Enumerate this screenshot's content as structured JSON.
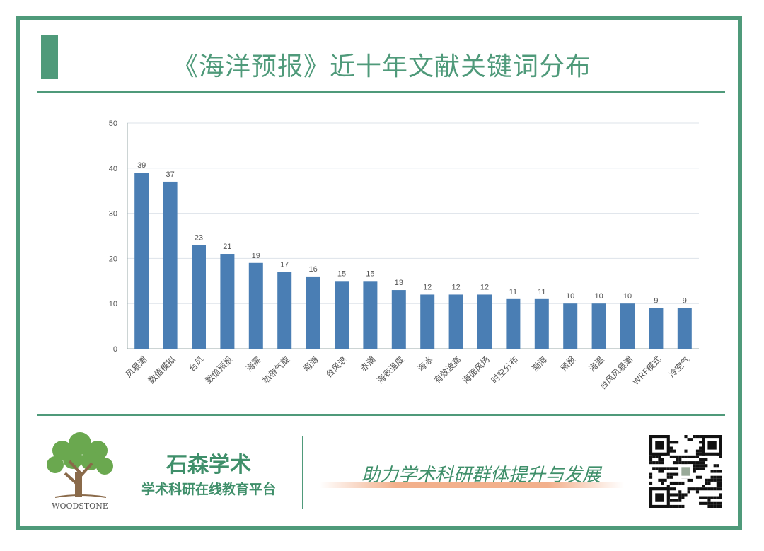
{
  "header": {
    "title": "《海洋预报》近十年文献关键词分布"
  },
  "chart_data": {
    "type": "bar",
    "title": "",
    "xlabel": "",
    "ylabel": "",
    "ylim": [
      0,
      50
    ],
    "yticks": [
      "0",
      "10",
      "20",
      "30",
      "40",
      "50"
    ],
    "grid": true,
    "bar_color": "#4a7eb4",
    "categories": [
      "风暴潮",
      "数值模拟",
      "台风",
      "数值预报",
      "海雾",
      "热带气旋",
      "南海",
      "台风浪",
      "赤潮",
      "海表温度",
      "海冰",
      "有效波高",
      "海面风场",
      "时空分布",
      "渤海",
      "预报",
      "海温",
      "台风风暴潮",
      "WRF模式",
      "冷空气"
    ],
    "values": [
      39,
      37,
      23,
      21,
      19,
      17,
      16,
      15,
      15,
      13,
      12,
      12,
      12,
      11,
      11,
      10,
      10,
      10,
      9,
      9
    ],
    "value_labels": [
      "39",
      "37",
      "23",
      "21",
      "19",
      "17",
      "16",
      "15",
      "15",
      "13",
      "12",
      "12",
      "12",
      "11",
      "11",
      "10",
      "10",
      "10",
      "9",
      "9"
    ]
  },
  "footer": {
    "logo_text": "WOODSTONE",
    "brand_name": "石森学术",
    "brand_subtitle": "学术科研在线教育平台",
    "slogan": "助力学术科研群体提升与发展"
  },
  "colors": {
    "theme_green": "#4f9a7a",
    "bar_blue": "#4a7eb4",
    "slogan_highlight": "#f2b08c"
  }
}
